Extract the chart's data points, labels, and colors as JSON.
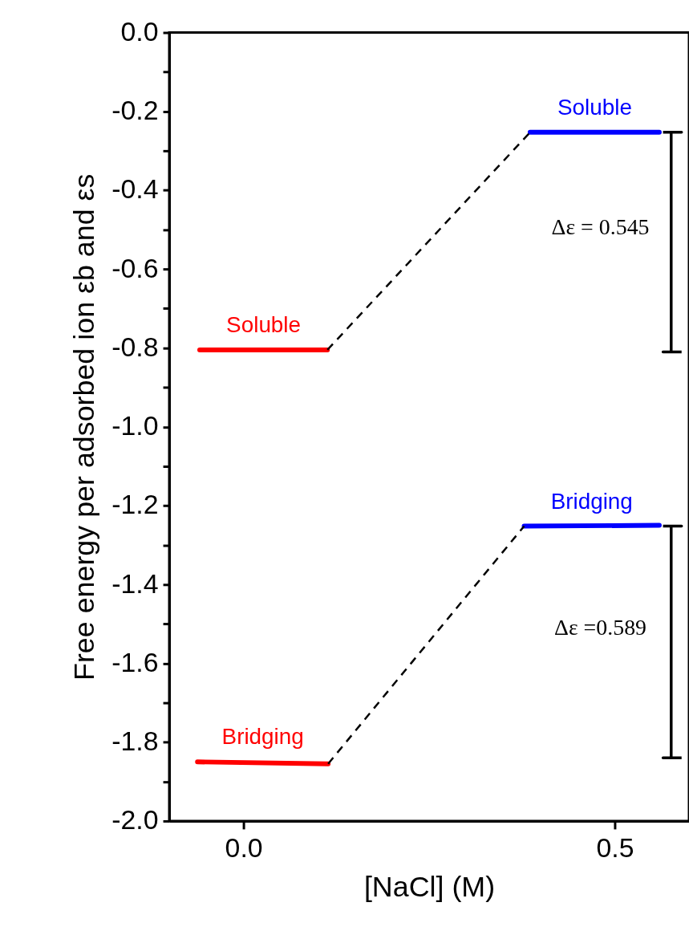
{
  "chart_data": {
    "type": "line",
    "xlabel": "[NaCl] (M)",
    "ylabel": "Free energy per adsorbed ion  εb and εs",
    "xlim": [
      -0.1,
      0.6
    ],
    "xticks": [
      {
        "value": 0,
        "label": "0.0"
      },
      0.5
    ],
    "ylim": [
      -2.0,
      0.0
    ],
    "yticks": [
      {
        "value": 0,
        "label": "0.0"
      },
      {
        "value": -0.1,
        "label": null
      },
      -0.2,
      {
        "value": -0.3,
        "label": null
      },
      -0.4,
      {
        "value": -0.5,
        "label": null
      },
      -0.6,
      {
        "value": -0.7,
        "label": null
      },
      -0.8,
      {
        "value": -0.9,
        "label": null
      },
      {
        "value": -1.0,
        "label": "-1.0"
      },
      {
        "value": -1.1,
        "label": null
      },
      -1.2,
      {
        "value": -1.3,
        "label": null
      },
      -1.4,
      {
        "value": -1.5,
        "label": null
      },
      -1.6,
      {
        "value": -1.7,
        "label": null
      },
      -1.8,
      {
        "value": -1.9,
        "label": null
      },
      {
        "value": -2.0,
        "label": "-2.0"
      }
    ],
    "grid": false,
    "marker": "none",
    "series": [
      {
        "name": "Soluble",
        "color": "#ff0000",
        "x": [
          -0.059,
          0.113
        ],
        "values": [
          -0.805,
          -0.805
        ],
        "line_style": "solid"
      },
      {
        "name": "Bridging",
        "color": "#ff0000",
        "x": [
          -0.062,
          0.114
        ],
        "values": [
          -1.85,
          -1.855
        ],
        "line_style": "solid"
      },
      {
        "name": "Soluble",
        "color": "#0000ff",
        "x": [
          0.386,
          0.56
        ],
        "values": [
          -0.253,
          -0.253
        ],
        "line_style": "solid"
      },
      {
        "name": "Bridging",
        "color": "#0000ff",
        "x": [
          0.378,
          0.56
        ],
        "values": [
          -1.252,
          -1.25
        ],
        "line_style": "solid"
      },
      {
        "color": "#000000",
        "x": [
          0.113,
          0.386
        ],
        "values": [
          -0.805,
          -0.253
        ],
        "line_style": "dashed"
      },
      {
        "color": "#000000",
        "x": [
          0.114,
          0.378
        ],
        "values": [
          -1.855,
          -1.252
        ],
        "line_style": "dashed"
      },
      {
        "color": "#000000",
        "x": [
          0.565,
          0.59,
          0.576,
          0.576,
          0.565,
          0.59
        ],
        "values": [
          -0.253,
          -0.253,
          -0.253,
          -0.81,
          -0.81,
          -0.81
        ],
        "line_style": "solid"
      },
      {
        "color": "#000000",
        "x": [
          0.565,
          0.59,
          0.576,
          0.576,
          0.565,
          0.59
        ],
        "values": [
          -1.252,
          -1.252,
          -1.252,
          -1.84,
          -1.84,
          -1.84
        ],
        "line_style": "solid"
      }
    ],
    "annotations": [
      "Δε = 0.545",
      "Δε =0.589"
    ]
  }
}
